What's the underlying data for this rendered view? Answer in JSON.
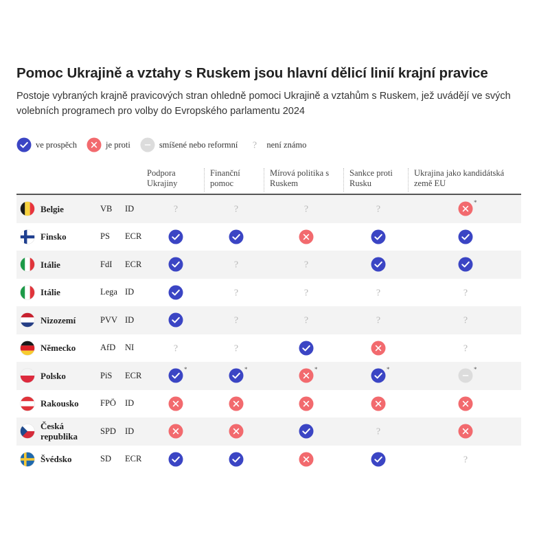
{
  "chart_data": {
    "type": "table",
    "title": "Pomoc Ukrajině a vztahy s Ruskem jsou hlavní dělicí linií krajní pravice",
    "subtitle": "Postoje vybraných krajně pravicových stran ohledně pomoci Ukrajině a vztahům s Ruskem, jež uvádějí ve svých volebních programech pro volby do Evropského parlamentu 2024",
    "legend": [
      {
        "key": "yes",
        "label": "ve prospěch",
        "color": "#3b45c4"
      },
      {
        "key": "no",
        "label": "je proti",
        "color": "#f26a6e"
      },
      {
        "key": "mixed",
        "label": "smíšené nebo reformní",
        "color": "#d9d9d9"
      },
      {
        "key": "unknown",
        "label": "není známo",
        "color": "#bbbbbb"
      }
    ],
    "columns": [
      {
        "line1": "Podpora",
        "line2": "Ukrajiny"
      },
      {
        "line1": "Finanční",
        "line2": "pomoc"
      },
      {
        "line1": "Mírová politika s",
        "line2": "Ruskem"
      },
      {
        "line1": "Sankce proti",
        "line2": "Rusku"
      },
      {
        "line1": "Ukrajina jako kandidátská",
        "line2": "země EU"
      }
    ],
    "rows": [
      {
        "country": "Belgie",
        "party": "VB",
        "group": "ID",
        "flag": "be-flag-icon",
        "values": [
          "unknown",
          "unknown",
          "unknown",
          "unknown",
          "no"
        ],
        "notes": [
          false,
          false,
          false,
          false,
          true
        ]
      },
      {
        "country": "Finsko",
        "party": "PS",
        "group": "ECR",
        "flag": "fi-flag-icon",
        "values": [
          "yes",
          "yes",
          "no",
          "yes",
          "yes"
        ],
        "notes": [
          false,
          false,
          false,
          false,
          false
        ]
      },
      {
        "country": "Itálie",
        "party": "FdI",
        "group": "ECR",
        "flag": "it-flag-icon",
        "values": [
          "yes",
          "unknown",
          "unknown",
          "yes",
          "yes"
        ],
        "notes": [
          false,
          false,
          false,
          false,
          false
        ]
      },
      {
        "country": "Itálie",
        "party": "Lega",
        "group": "ID",
        "flag": "it-flag-icon",
        "values": [
          "yes",
          "unknown",
          "unknown",
          "unknown",
          "unknown"
        ],
        "notes": [
          false,
          false,
          false,
          false,
          false
        ]
      },
      {
        "country": "Nizozemí",
        "party": "PVV",
        "group": "ID",
        "flag": "nl-flag-icon",
        "values": [
          "yes",
          "unknown",
          "unknown",
          "unknown",
          "unknown"
        ],
        "notes": [
          false,
          false,
          false,
          false,
          false
        ]
      },
      {
        "country": "Německo",
        "party": "AfD",
        "group": "NI",
        "flag": "de-flag-icon",
        "values": [
          "unknown",
          "unknown",
          "yes",
          "no",
          "unknown"
        ],
        "notes": [
          false,
          false,
          false,
          false,
          false
        ]
      },
      {
        "country": "Polsko",
        "party": "PiS",
        "group": "ECR",
        "flag": "pl-flag-icon",
        "values": [
          "yes",
          "yes",
          "no",
          "yes",
          "mixed"
        ],
        "notes": [
          true,
          true,
          true,
          true,
          true
        ]
      },
      {
        "country": "Rakousko",
        "party": "FPÖ",
        "group": "ID",
        "flag": "at-flag-icon",
        "values": [
          "no",
          "no",
          "no",
          "no",
          "no"
        ],
        "notes": [
          false,
          false,
          false,
          false,
          false
        ]
      },
      {
        "country": "Česká republika",
        "party": "SPD",
        "group": "ID",
        "flag": "cz-flag-icon",
        "values": [
          "no",
          "no",
          "yes",
          "unknown",
          "no"
        ],
        "notes": [
          false,
          false,
          false,
          false,
          false
        ]
      },
      {
        "country": "Švédsko",
        "party": "SD",
        "group": "ECR",
        "flag": "se-flag-icon",
        "values": [
          "yes",
          "yes",
          "no",
          "yes",
          "unknown"
        ],
        "notes": [
          false,
          false,
          false,
          false,
          false
        ]
      }
    ],
    "note_mark": "*"
  }
}
